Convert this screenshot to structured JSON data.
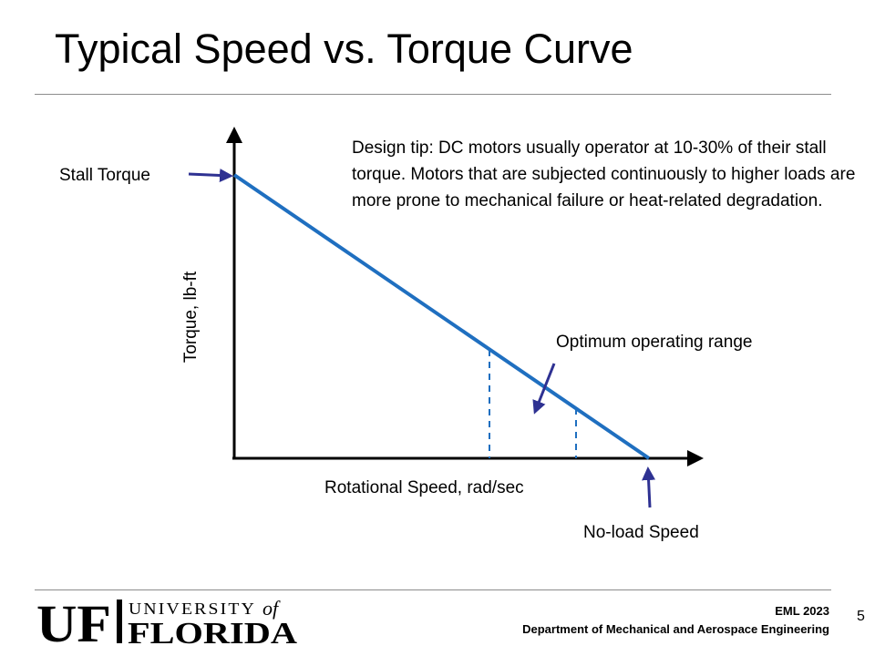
{
  "slide": {
    "title": "Typical Speed vs. Torque Curve",
    "page_number": "5"
  },
  "diagram": {
    "stall_torque_label": "Stall Torque",
    "no_load_speed_label": "No-load Speed",
    "y_axis_label": "Torque, lb-ft",
    "x_axis_label": "Rotational Speed, rad/sec",
    "optimum_label": "Optimum operating range",
    "design_tip": "Design tip:  DC motors usually operator at 10-30% of their stall torque.  Motors that are subjected continuously to higher loads are more prone to mechanical failure or heat-related degradation.",
    "line_color": "#1f6fc0",
    "arrow_color": "#2e3192",
    "axis_color": "#000000"
  },
  "footer": {
    "logo_letters": "UF",
    "logo_university": "UNIVERSITY",
    "logo_of": "of",
    "logo_florida": "FLORIDA",
    "course": "EML 2023",
    "department": "Department of Mechanical and Aerospace Engineering",
    "logo_color": "#000000"
  }
}
